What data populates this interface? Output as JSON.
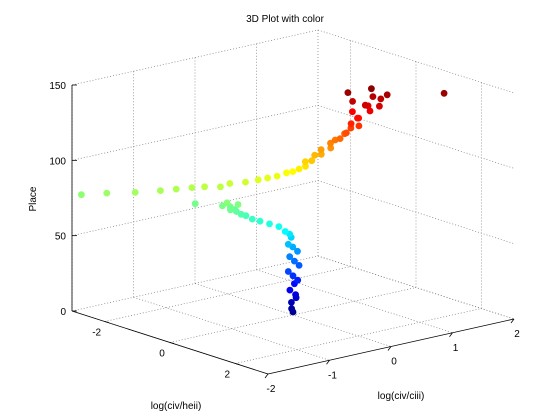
{
  "chart_data": {
    "type": "scatter3d",
    "title": "3D Plot with color",
    "xlabel": "log(civ/heii)",
    "ylabel": "log(civ/ciii)",
    "zlabel": "Place",
    "xlim": [
      -3,
      3
    ],
    "ylim": [
      -2,
      2
    ],
    "zlim": [
      0,
      150
    ],
    "x_ticks": [
      "-2",
      "0",
      "2"
    ],
    "y_ticks": [
      "-2",
      "-1",
      "0",
      "1",
      "2"
    ],
    "z_ticks": [
      "0",
      "50",
      "100",
      "150"
    ],
    "grid": true,
    "colormap": "jet",
    "color_by": "Place",
    "points": [
      {
        "x": 0.0,
        "y": 0.0,
        "z": 2
      },
      {
        "x": 0.05,
        "y": -0.05,
        "z": 5
      },
      {
        "x": -0.05,
        "y": 0.0,
        "z": 8
      },
      {
        "x": 0.0,
        "y": 0.05,
        "z": 11
      },
      {
        "x": 0.08,
        "y": 0.0,
        "z": 14
      },
      {
        "x": 0.0,
        "y": -0.05,
        "z": 17
      },
      {
        "x": -0.05,
        "y": 0.05,
        "z": 20
      },
      {
        "x": 0.05,
        "y": 0.05,
        "z": 23
      },
      {
        "x": 0.0,
        "y": 0.0,
        "z": 26
      },
      {
        "x": -0.05,
        "y": -0.05,
        "z": 29
      },
      {
        "x": 0.0,
        "y": 0.1,
        "z": 32
      },
      {
        "x": -0.05,
        "y": 0.05,
        "z": 35
      },
      {
        "x": -0.1,
        "y": 0.0,
        "z": 38
      },
      {
        "x": -0.05,
        "y": 0.1,
        "z": 41
      },
      {
        "x": -0.1,
        "y": 0.05,
        "z": 44
      },
      {
        "x": -0.05,
        "y": -0.05,
        "z": 47
      },
      {
        "x": -0.15,
        "y": 0.05,
        "z": 50
      },
      {
        "x": -0.1,
        "y": 0.0,
        "z": 53
      },
      {
        "x": -0.05,
        "y": -0.1,
        "z": 56
      },
      {
        "x": -0.15,
        "y": -0.15,
        "z": 59
      },
      {
        "x": -0.25,
        "y": -0.25,
        "z": 61
      },
      {
        "x": -0.35,
        "y": -0.35,
        "z": 63
      },
      {
        "x": -0.4,
        "y": -0.45,
        "z": 65
      },
      {
        "x": -0.5,
        "y": -0.5,
        "z": 67
      },
      {
        "x": -0.55,
        "y": -0.55,
        "z": 68
      },
      {
        "x": -0.6,
        "y": -0.6,
        "z": 70
      },
      {
        "x": -0.65,
        "y": -0.6,
        "z": 71
      },
      {
        "x": -0.6,
        "y": -0.7,
        "z": 72
      },
      {
        "x": -0.7,
        "y": -0.65,
        "z": 73
      },
      {
        "x": -0.75,
        "y": -0.75,
        "z": 74
      },
      {
        "x": -0.55,
        "y": -0.6,
        "z": 75
      },
      {
        "x": -0.7,
        "y": -0.7,
        "z": 76
      },
      {
        "x": -1.3,
        "y": -0.9,
        "z": 73
      },
      {
        "x": -2.9,
        "y": -1.9,
        "z": 77
      },
      {
        "x": -2.5,
        "y": -1.7,
        "z": 79
      },
      {
        "x": -2.1,
        "y": -1.45,
        "z": 80
      },
      {
        "x": -1.8,
        "y": -1.2,
        "z": 81
      },
      {
        "x": -1.6,
        "y": -1.05,
        "z": 82
      },
      {
        "x": -1.4,
        "y": -0.9,
        "z": 83
      },
      {
        "x": -1.2,
        "y": -0.8,
        "z": 84
      },
      {
        "x": -1.0,
        "y": -0.65,
        "z": 84
      },
      {
        "x": -0.9,
        "y": -0.55,
        "z": 86
      },
      {
        "x": -0.7,
        "y": -0.4,
        "z": 87
      },
      {
        "x": -0.5,
        "y": -0.3,
        "z": 89
      },
      {
        "x": -0.4,
        "y": -0.2,
        "z": 90
      },
      {
        "x": -0.3,
        "y": -0.1,
        "z": 91
      },
      {
        "x": -0.2,
        "y": 0.0,
        "z": 93
      },
      {
        "x": -0.1,
        "y": 0.05,
        "z": 94
      },
      {
        "x": 0.0,
        "y": 0.1,
        "z": 96
      },
      {
        "x": 0.1,
        "y": 0.15,
        "z": 98
      },
      {
        "x": 0.0,
        "y": 0.2,
        "z": 100
      },
      {
        "x": 0.2,
        "y": 0.2,
        "z": 102
      },
      {
        "x": 0.1,
        "y": 0.3,
        "z": 104
      },
      {
        "x": 0.3,
        "y": 0.3,
        "z": 106
      },
      {
        "x": 0.2,
        "y": 0.35,
        "z": 108
      },
      {
        "x": 0.4,
        "y": 0.4,
        "z": 110
      },
      {
        "x": 0.3,
        "y": 0.45,
        "z": 112
      },
      {
        "x": 0.35,
        "y": 0.5,
        "z": 114
      },
      {
        "x": 0.5,
        "y": 0.5,
        "z": 116
      },
      {
        "x": 0.45,
        "y": 0.6,
        "z": 118
      },
      {
        "x": 0.6,
        "y": 0.55,
        "z": 120
      },
      {
        "x": 0.55,
        "y": 0.65,
        "z": 122
      },
      {
        "x": 0.7,
        "y": 0.7,
        "z": 124
      },
      {
        "x": 0.65,
        "y": 0.6,
        "z": 126
      },
      {
        "x": 0.6,
        "y": 0.75,
        "z": 128
      },
      {
        "x": 0.75,
        "y": 0.65,
        "z": 130
      },
      {
        "x": 0.5,
        "y": 0.7,
        "z": 132
      },
      {
        "x": 0.85,
        "y": 0.8,
        "z": 134
      },
      {
        "x": 0.7,
        "y": 0.85,
        "z": 136
      },
      {
        "x": 0.95,
        "y": 0.9,
        "z": 137
      },
      {
        "x": 0.8,
        "y": 0.75,
        "z": 138
      },
      {
        "x": 0.6,
        "y": 0.65,
        "z": 140
      },
      {
        "x": 0.9,
        "y": 0.95,
        "z": 141
      },
      {
        "x": 0.75,
        "y": 0.9,
        "z": 142
      },
      {
        "x": 1.0,
        "y": 1.0,
        "z": 144
      },
      {
        "x": 0.55,
        "y": 0.6,
        "z": 146
      },
      {
        "x": 0.8,
        "y": 0.85,
        "z": 148
      },
      {
        "x": 1.8,
        "y": 1.5,
        "z": 146
      }
    ]
  }
}
